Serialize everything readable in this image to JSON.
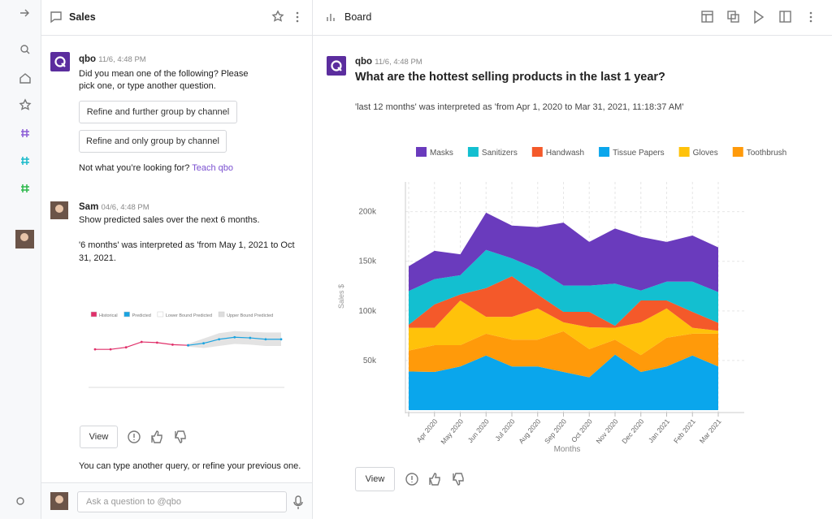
{
  "left_panel": {
    "title": "Sales",
    "messages": [
      {
        "author": "qbo",
        "time": "11/6, 4:48 PM",
        "text": "Did you mean one of the following? Please pick one, or type another question.",
        "options": [
          "Refine and further group by channel",
          "Refine and only group by channel"
        ],
        "footer": "Not what you’re looking for?",
        "link": "Teach qbo"
      },
      {
        "author": "Sam",
        "time": "04/6, 4:48 PM",
        "text": "Show predicted sales over the next 6 months.",
        "note": "'6 months' was interpreted as 'from May 1, 2021 to Oct 31, 2021."
      }
    ],
    "view_button": "View",
    "hint": "You can type another query, or refine your previous one.",
    "input_placeholder": "Ask a question to @qbo"
  },
  "right_panel": {
    "title": "Board",
    "author": "qbo",
    "time": "11/6, 4:48 PM",
    "question": "What are the hottest selling products in the last 1 year?",
    "interpretation": "'last 12 months' was interpreted as 'from Apr 1, 2020 to Mar 31, 2021, 11:18:37 AM'",
    "view_button": "View"
  },
  "chart_data": [
    {
      "type": "stacked_area",
      "xlabel": "Months",
      "ylabel": "Sales $",
      "categories": [
        null,
        "Apr 2020",
        "May 2020",
        "Jun 2020",
        "Jul 2020",
        "Aug 2020",
        "Sep 2020",
        "Oct 2020",
        "Nov 2020",
        "Dec 2020",
        "Jan 2021",
        "Feb 2021",
        "Mar 2021"
      ],
      "series": [
        {
          "name": "Masks",
          "color": "#6a3bbd",
          "values": [
            25000,
            28500,
            21000,
            37500,
            33000,
            42500,
            63500,
            44000,
            55500,
            54000,
            40000,
            46500,
            45000
          ]
        },
        {
          "name": "Sanitizers",
          "color": "#13bfd0",
          "values": [
            34000,
            25500,
            19500,
            38500,
            18000,
            25500,
            26500,
            26500,
            42500,
            10000,
            19000,
            30500,
            31000
          ]
        },
        {
          "name": "Handwash",
          "color": "#f4592a",
          "values": [
            3000,
            23500,
            6000,
            29000,
            41000,
            14000,
            10500,
            15500,
            2000,
            22000,
            8000,
            16000,
            8000
          ]
        },
        {
          "name": "Tissue Papers",
          "color": "#0aa6ec",
          "values": [
            39000,
            38500,
            44000,
            55000,
            44000,
            44000,
            38500,
            33000,
            56000,
            38500,
            44000,
            55000,
            44000
          ]
        },
        {
          "name": "Gloves",
          "color": "#ffc20a",
          "values": [
            23000,
            17500,
            45000,
            17000,
            23000,
            31500,
            9000,
            22000,
            12000,
            33000,
            29500,
            6000,
            3000
          ]
        },
        {
          "name": "Toothbrush",
          "color": "#ff9a0a",
          "values": [
            21000,
            27000,
            21500,
            22000,
            27000,
            27000,
            41000,
            28500,
            15000,
            17000,
            29000,
            22000,
            33000
          ]
        }
      ],
      "ylim": [
        0,
        230000
      ],
      "yticks": [
        {
          "value": 50000,
          "label": "50k"
        },
        {
          "value": 100000,
          "label": "100k"
        },
        {
          "value": 150000,
          "label": "150k"
        },
        {
          "value": 200000,
          "label": "200k"
        }
      ],
      "grid": true,
      "legend": "top"
    },
    {
      "type": "line",
      "legend": "top",
      "series": [
        {
          "name": "Historical",
          "color": "#e0306a",
          "values": [
            54,
            54,
            57,
            65,
            64,
            61,
            60,
            null,
            null,
            null,
            null,
            null,
            null
          ]
        },
        {
          "name": "Predicted",
          "color": "#1aa3e0",
          "values": [
            null,
            null,
            null,
            null,
            null,
            null,
            60,
            63,
            69,
            72,
            71,
            69,
            69
          ]
        },
        {
          "name": "Lower Bound Predicted",
          "color": "#ffffff",
          "values": [
            null,
            null,
            null,
            null,
            null,
            null,
            58,
            56,
            59,
            62,
            61,
            59,
            59
          ]
        },
        {
          "name": "Upper Bound Predicted",
          "color": "#dddddd",
          "values": [
            null,
            null,
            null,
            null,
            null,
            null,
            62,
            70,
            78,
            81,
            80,
            79,
            79
          ]
        }
      ],
      "ylim": [
        0,
        100
      ]
    }
  ]
}
